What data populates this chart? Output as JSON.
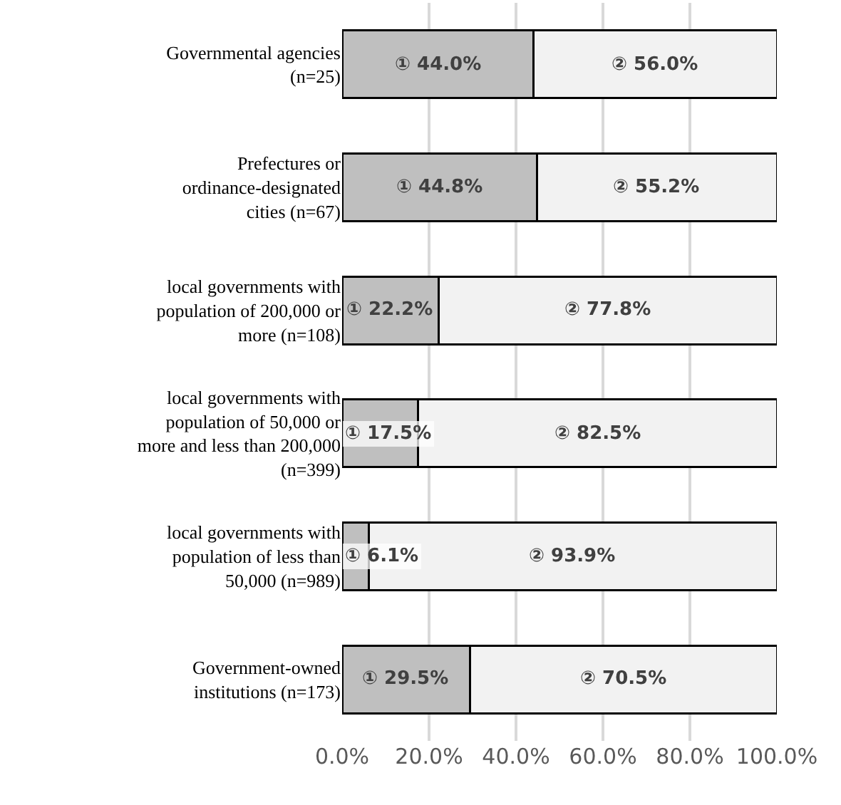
{
  "chart_data": {
    "type": "bar",
    "orientation": "horizontal",
    "stacked": true,
    "categories": [
      "Governmental agencies (n=25)",
      "Prefectures or ordinance-designated cities (n=67)",
      "local governments with population of 200,000 or more (n=108)",
      "local governments with population of 50,000 or more and less than 200,000 (n=399)",
      "local governments with population of less than 50,000 (n=989)",
      "Government-owned institutions (n=173)"
    ],
    "series": [
      {
        "color": "#bfbfbf",
        "values": [
          44.0,
          44.8,
          22.2,
          17.5,
          6.1,
          29.5
        ],
        "value_labels": [
          "① 44.0%",
          "① 44.8%",
          "① 22.2%",
          "① 17.5%",
          "① 6.1%",
          "① 29.5%"
        ]
      },
      {
        "color": "#f2f2f2",
        "values": [
          56.0,
          55.2,
          77.8,
          82.5,
          93.9,
          70.5
        ],
        "value_labels": [
          "② 56.0%",
          "② 55.2%",
          "② 77.8%",
          "② 82.5%",
          "② 93.9%",
          "② 70.5%"
        ]
      }
    ],
    "xlim": [
      0,
      100
    ],
    "xticks": [
      {
        "value": 0,
        "label": "0.0%"
      },
      {
        "value": 20,
        "label": "20.0%"
      },
      {
        "value": 40,
        "label": "40.0%"
      },
      {
        "value": 60,
        "label": "60.0%"
      },
      {
        "value": 80,
        "label": "80.0%"
      },
      {
        "value": 100,
        "label": "100.0%"
      }
    ],
    "grid": "x"
  }
}
